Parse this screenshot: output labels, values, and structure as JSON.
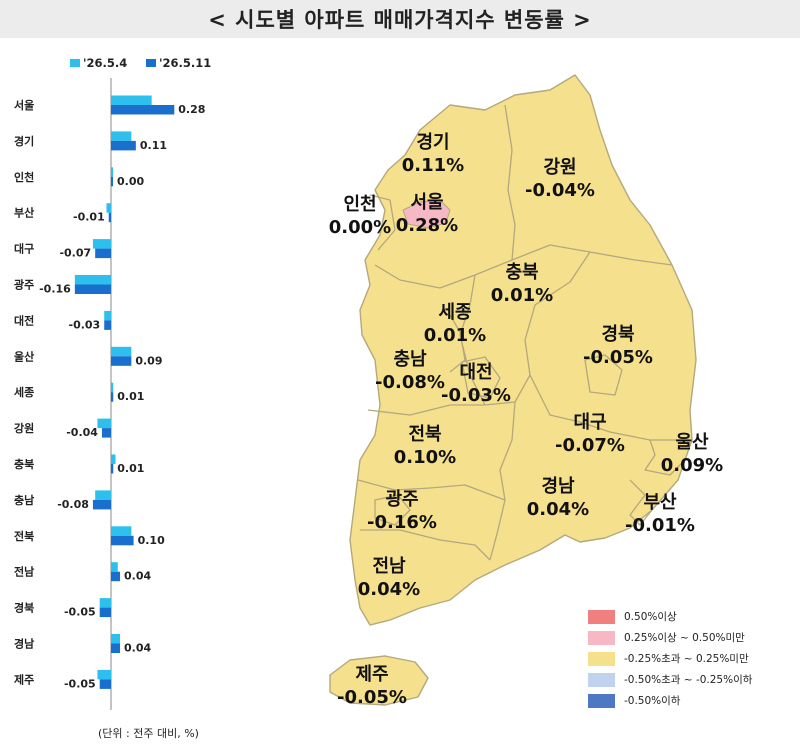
{
  "title": "< 시도별 아파트 매매가격지수 변동률 >",
  "unit_note": "(단위 : 전주 대비, %)",
  "colors": {
    "series_prev": "#2dc0ec",
    "series_curr": "#1a6fce",
    "map_fill": "#f5e08e",
    "map_border": "#b4a87c",
    "map_seoul": "#f6b8c4"
  },
  "chart_data": {
    "type": "bar",
    "orientation": "horizontal",
    "categories": [
      "서울",
      "경기",
      "인천",
      "부산",
      "대구",
      "광주",
      "대전",
      "울산",
      "세종",
      "강원",
      "충북",
      "충남",
      "전북",
      "전남",
      "경북",
      "경남",
      "제주"
    ],
    "series": [
      {
        "name": "'26.5.4",
        "values": [
          0.18,
          0.09,
          0.0,
          -0.02,
          -0.08,
          -0.16,
          -0.03,
          0.09,
          0.01,
          -0.06,
          0.02,
          -0.07,
          0.09,
          0.03,
          -0.05,
          0.04,
          -0.06
        ]
      },
      {
        "name": "'26.5.11",
        "values": [
          0.28,
          0.11,
          0.0,
          -0.01,
          -0.07,
          -0.16,
          -0.03,
          0.09,
          0.01,
          -0.04,
          0.01,
          -0.08,
          0.1,
          0.04,
          -0.05,
          0.04,
          -0.05
        ]
      }
    ],
    "data_labels": [
      "0.28",
      "0.11",
      "0.00",
      "-0.01",
      "-0.07",
      "-0.16",
      "-0.03",
      "0.09",
      "0.01",
      "-0.04",
      "0.01",
      "-0.08",
      "0.10",
      "0.04",
      "-0.05",
      "0.04",
      "-0.05"
    ],
    "legend_position": "top"
  },
  "map": {
    "regions": [
      {
        "name": "인천",
        "value": "0.00%"
      },
      {
        "name": "경기",
        "value": "0.11%"
      },
      {
        "name": "서울",
        "value": "0.28%"
      },
      {
        "name": "강원",
        "value": "-0.04%"
      },
      {
        "name": "충북",
        "value": "0.01%"
      },
      {
        "name": "세종",
        "value": "0.01%"
      },
      {
        "name": "충남",
        "value": "-0.08%"
      },
      {
        "name": "대전",
        "value": "-0.03%"
      },
      {
        "name": "경북",
        "value": "-0.05%"
      },
      {
        "name": "대구",
        "value": "-0.07%"
      },
      {
        "name": "전북",
        "value": "0.10%"
      },
      {
        "name": "울산",
        "value": "0.09%"
      },
      {
        "name": "경남",
        "value": "0.04%"
      },
      {
        "name": "광주",
        "value": "-0.16%"
      },
      {
        "name": "부산",
        "value": "-0.01%"
      },
      {
        "name": "전남",
        "value": "0.04%"
      },
      {
        "name": "제주",
        "value": "-0.05%"
      }
    ],
    "legend": [
      {
        "label": "0.50%이상",
        "color": "#f08080"
      },
      {
        "label": "0.25%이상 ~ 0.50%미만",
        "color": "#f6b8c4"
      },
      {
        "label": "-0.25%초과 ~ 0.25%미만",
        "color": "#f5e08e"
      },
      {
        "label": "-0.50%초과 ~ -0.25%이하",
        "color": "#c1d2ee"
      },
      {
        "label": "-0.50%이하",
        "color": "#4f78c4"
      }
    ]
  }
}
